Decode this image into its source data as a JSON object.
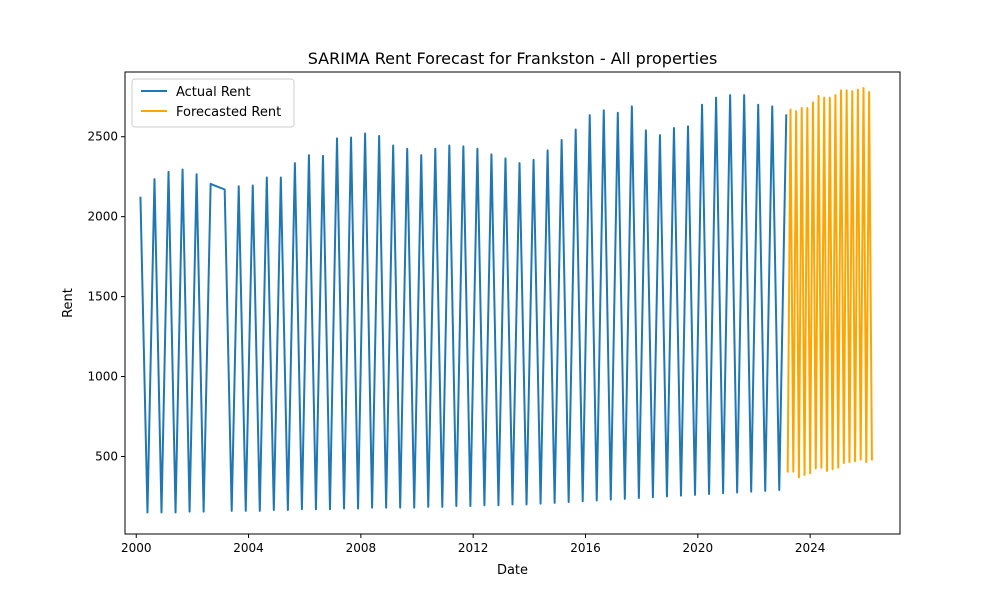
{
  "chart_data": {
    "type": "line",
    "title": "SARIMA Rent Forecast for Frankston - All properties",
    "xlabel": "Date",
    "ylabel": "Rent",
    "xlim": [
      1999.6,
      2027.2
    ],
    "ylim": [
      15,
      2905
    ],
    "xticks": [
      2000,
      2004,
      2008,
      2012,
      2016,
      2020,
      2024
    ],
    "xtick_labels": [
      "2000",
      "2004",
      "2008",
      "2012",
      "2016",
      "2020",
      "2024"
    ],
    "yticks": [
      500,
      1000,
      1500,
      2000,
      2500
    ],
    "ytick_labels": [
      "500",
      "1000",
      "1500",
      "2000",
      "2500"
    ],
    "grid": false,
    "legend": {
      "position": "top-left"
    },
    "series": [
      {
        "name": "Actual Rent",
        "color": "#1f77b4",
        "x": [
          2000.15,
          2000.4,
          2000.65,
          2000.9,
          2001.15,
          2001.4,
          2001.65,
          2001.9,
          2002.15,
          2002.4,
          2002.65,
          2003.15,
          2003.4,
          2003.65,
          2003.9,
          2004.15,
          2004.4,
          2004.65,
          2004.9,
          2005.15,
          2005.4,
          2005.65,
          2005.9,
          2006.15,
          2006.4,
          2006.65,
          2006.9,
          2007.15,
          2007.4,
          2007.65,
          2007.9,
          2008.15,
          2008.4,
          2008.65,
          2008.9,
          2009.15,
          2009.4,
          2009.65,
          2009.9,
          2010.15,
          2010.4,
          2010.65,
          2010.9,
          2011.15,
          2011.4,
          2011.65,
          2011.9,
          2012.15,
          2012.4,
          2012.65,
          2012.9,
          2013.15,
          2013.4,
          2013.65,
          2013.9,
          2014.15,
          2014.4,
          2014.65,
          2014.9,
          2015.15,
          2015.4,
          2015.65,
          2015.9,
          2016.15,
          2016.4,
          2016.65,
          2016.9,
          2017.15,
          2017.4,
          2017.65,
          2017.9,
          2018.15,
          2018.4,
          2018.65,
          2018.9,
          2019.15,
          2019.4,
          2019.65,
          2019.9,
          2020.15,
          2020.4,
          2020.65,
          2020.9,
          2021.15,
          2021.4,
          2021.65,
          2021.9,
          2022.15,
          2022.4,
          2022.65,
          2022.9,
          2023.15
        ],
        "y": [
          2125,
          150,
          2235,
          150,
          2280,
          150,
          2295,
          155,
          2265,
          155,
          2205,
          2170,
          160,
          2190,
          160,
          2195,
          160,
          2245,
          165,
          2245,
          165,
          2335,
          170,
          2385,
          170,
          2380,
          170,
          2490,
          175,
          2495,
          175,
          2520,
          180,
          2505,
          180,
          2445,
          180,
          2425,
          180,
          2385,
          185,
          2425,
          185,
          2445,
          190,
          2440,
          190,
          2425,
          195,
          2390,
          195,
          2365,
          200,
          2335,
          200,
          2355,
          205,
          2415,
          210,
          2480,
          215,
          2545,
          220,
          2635,
          225,
          2665,
          230,
          2650,
          235,
          2690,
          240,
          2540,
          245,
          2510,
          250,
          2555,
          255,
          2565,
          260,
          2700,
          265,
          2745,
          270,
          2760,
          275,
          2760,
          280,
          2700,
          285,
          2690,
          290,
          2640
        ]
      },
      {
        "name": "Forecasted Rent",
        "color": "#ffa500",
        "x": [
          2023.2,
          2023.3,
          2023.4,
          2023.5,
          2023.6,
          2023.7,
          2023.8,
          2023.9,
          2024.0,
          2024.1,
          2024.2,
          2024.3,
          2024.4,
          2024.5,
          2024.6,
          2024.7,
          2024.8,
          2024.9,
          2025.0,
          2025.1,
          2025.2,
          2025.3,
          2025.4,
          2025.5,
          2025.6,
          2025.7,
          2025.8,
          2025.9,
          2026.0,
          2026.1,
          2026.2
        ],
        "y": [
          400,
          2670,
          405,
          2660,
          370,
          2680,
          385,
          2680,
          395,
          2715,
          425,
          2755,
          430,
          2745,
          410,
          2745,
          420,
          2760,
          430,
          2790,
          460,
          2790,
          465,
          2785,
          470,
          2795,
          480,
          2805,
          465,
          2780,
          475
        ]
      }
    ]
  }
}
